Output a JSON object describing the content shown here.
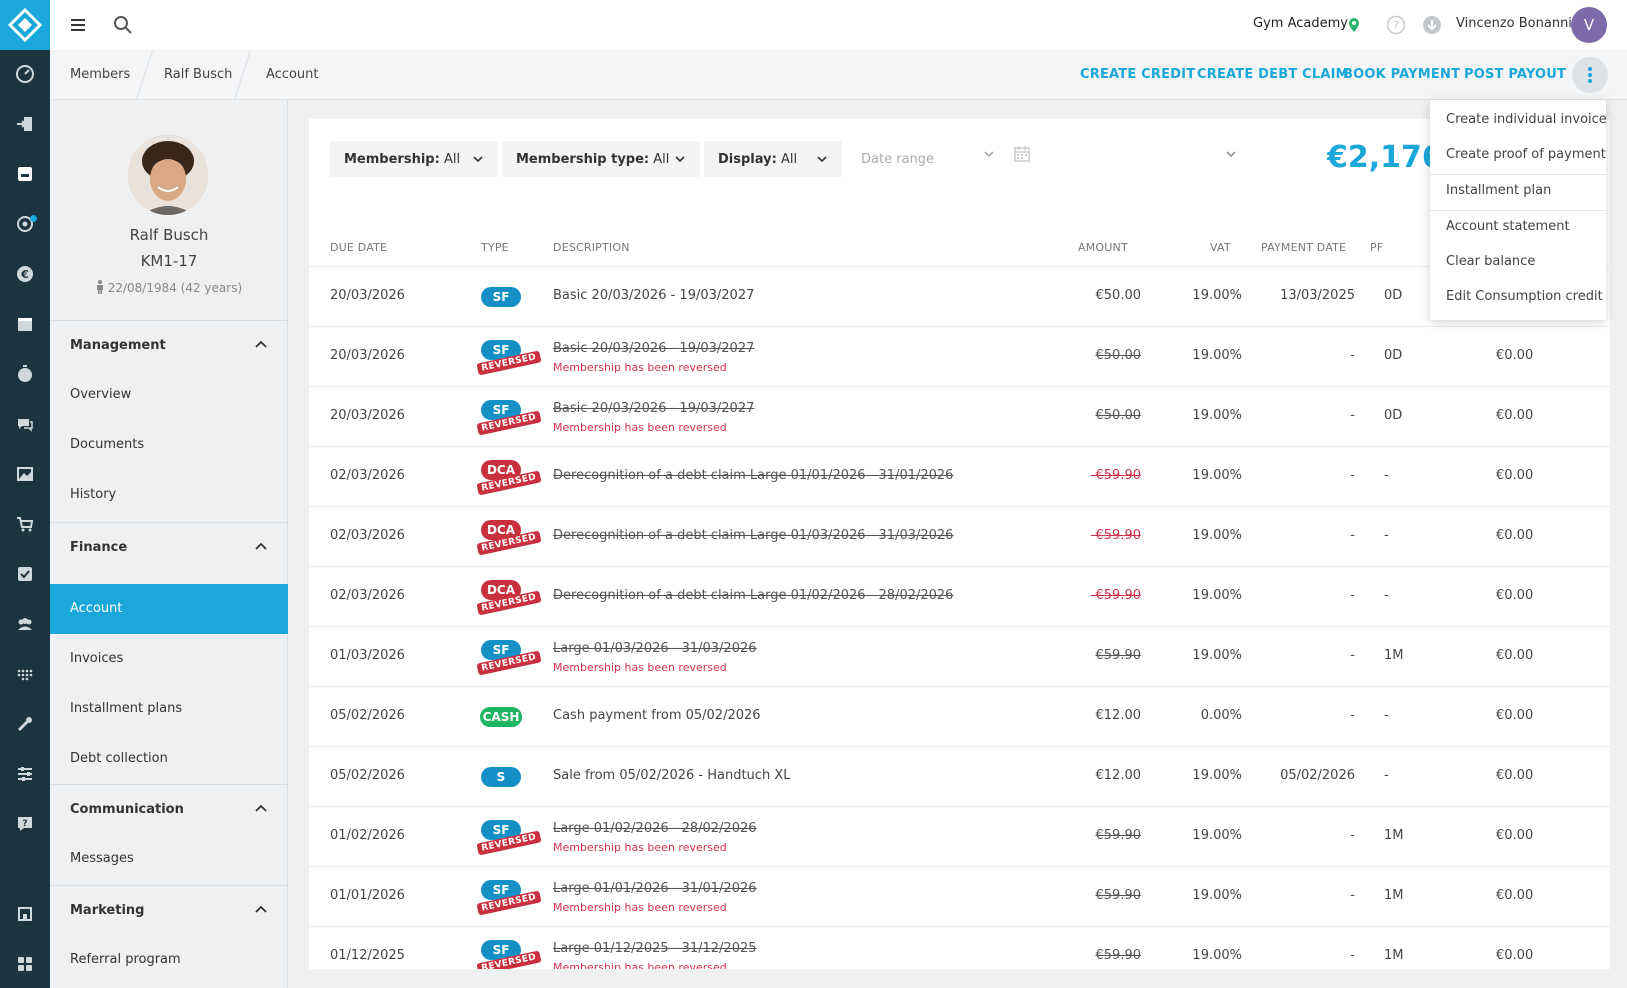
{
  "header": {
    "gym": "Gym Academy",
    "user_name": "Vincenzo Bonanni",
    "avatar_initial": "V"
  },
  "breadcrumb": [
    "Members",
    "Ralf Busch",
    "Account"
  ],
  "actions": {
    "create_credit": "CREATE CREDIT",
    "create_debt_claim": "CREATE DEBT CLAIM",
    "book_payment": "BOOK PAYMENT",
    "post_payout": "POST PAYOUT"
  },
  "menu": {
    "items": [
      "Create individual invoice",
      "Create proof of payment",
      "Installment plan",
      "Account statement",
      "Clear balance",
      "Edit Consumption credit"
    ]
  },
  "profile": {
    "name": "Ralf Busch",
    "member_id": "KM1-17",
    "dob": "22/08/1984 (42 years)"
  },
  "sidebar": {
    "management": "Management",
    "overview": "Overview",
    "documents": "Documents",
    "history": "History",
    "finance": "Finance",
    "account": "Account",
    "invoices": "Invoices",
    "installment_plans": "Installment plans",
    "debt_collection": "Debt collection",
    "communication": "Communication",
    "messages": "Messages",
    "marketing": "Marketing",
    "referral_program": "Referral program"
  },
  "filters": {
    "membership_label": "Membership:",
    "membership_value": "All",
    "type_label": "Membership type:",
    "type_value": "All",
    "display_label": "Display:",
    "display_value": "All",
    "date_placeholder": "Date range"
  },
  "balance": "€2,176.",
  "table": {
    "headers": {
      "due_date": "DUE DATE",
      "type": "TYPE",
      "description": "DESCRIPTION",
      "amount": "AMOUNT",
      "vat": "VAT",
      "payment_date": "PAYMENT DATE",
      "pf": "PF"
    },
    "rows": [
      {
        "date": "20/03/2026",
        "type": "SF",
        "desc": "Basic 20/03/2026 - 19/03/2027",
        "amount": "€50.00",
        "vat": "19.00%",
        "pay": "13/03/2025",
        "pf": "0D",
        "bal": ""
      },
      {
        "date": "20/03/2026",
        "type": "SF",
        "reversed": "REVERSED",
        "desc": "Basic 20/03/2026 - 19/03/2027",
        "note": "Membership has been reversed",
        "amount": "€50.00",
        "vat": "19.00%",
        "pay": "-",
        "pf": "0D",
        "bal": "€0.00"
      },
      {
        "date": "20/03/2026",
        "type": "SF",
        "reversed": "REVERSED",
        "desc": "Basic 20/03/2026 - 19/03/2027",
        "note": "Membership has been reversed",
        "amount": "€50.00",
        "vat": "19.00%",
        "pay": "-",
        "pf": "0D",
        "bal": "€0.00"
      },
      {
        "date": "02/03/2026",
        "type": "DCA",
        "reversed": "REVERSED",
        "desc": "Derecognition of a debt claim Large 01/01/2026 - 31/01/2026",
        "amount": "-€59.90",
        "vat": "19.00%",
        "pay": "-",
        "pf": "-",
        "bal": "€0.00"
      },
      {
        "date": "02/03/2026",
        "type": "DCA",
        "reversed": "REVERSED",
        "desc": "Derecognition of a debt claim Large 01/03/2026 - 31/03/2026",
        "amount": "-€59.90",
        "vat": "19.00%",
        "pay": "-",
        "pf": "-",
        "bal": "€0.00"
      },
      {
        "date": "02/03/2026",
        "type": "DCA",
        "reversed": "REVERSED",
        "desc": "Derecognition of a debt claim Large 01/02/2026 - 28/02/2026",
        "amount": "-€59.90",
        "vat": "19.00%",
        "pay": "-",
        "pf": "-",
        "bal": "€0.00"
      },
      {
        "date": "01/03/2026",
        "type": "SF",
        "reversed": "REVERSED",
        "desc": "Large 01/03/2026 - 31/03/2026",
        "note": "Membership has been reversed",
        "amount": "€59.90",
        "vat": "19.00%",
        "pay": "-",
        "pf": "1M",
        "bal": "€0.00"
      },
      {
        "date": "05/02/2026",
        "type": "CASH",
        "desc": "Cash payment from 05/02/2026",
        "amount": "€12.00",
        "vat": "0.00%",
        "pay": "-",
        "pf": "-",
        "bal": "€0.00"
      },
      {
        "date": "05/02/2026",
        "type": "S",
        "desc": "Sale from 05/02/2026 - Handtuch XL",
        "amount": "€12.00",
        "vat": "19.00%",
        "pay": "05/02/2026",
        "pf": "-",
        "bal": "€0.00"
      },
      {
        "date": "01/02/2026",
        "type": "SF",
        "reversed": "REVERSED",
        "desc": "Large 01/02/2026 - 28/02/2026",
        "note": "Membership has been reversed",
        "amount": "€59.90",
        "vat": "19.00%",
        "pay": "-",
        "pf": "1M",
        "bal": "€0.00"
      },
      {
        "date": "01/01/2026",
        "type": "SF",
        "reversed": "REVERSED",
        "desc": "Large 01/01/2026 - 31/01/2026",
        "note": "Membership has been reversed",
        "amount": "€59.90",
        "vat": "19.00%",
        "pay": "-",
        "pf": "1M",
        "bal": "€0.00"
      },
      {
        "date": "01/12/2025",
        "type": "SF",
        "reversed": "REVERSED",
        "desc": "Large 01/12/2025 - 31/12/2025",
        "note": "Membership has been reversed",
        "amount": "€59.90",
        "vat": "19.00%",
        "pay": "-",
        "pf": "1M",
        "bal": "€0.00"
      }
    ]
  },
  "colors": {
    "accent": "#1aa7d9",
    "rail": "#1c3340",
    "sf_badge": "#1590c6",
    "dca_badge": "#c9303f",
    "cash_badge": "#1fb562",
    "reversed": "#d0324b"
  }
}
